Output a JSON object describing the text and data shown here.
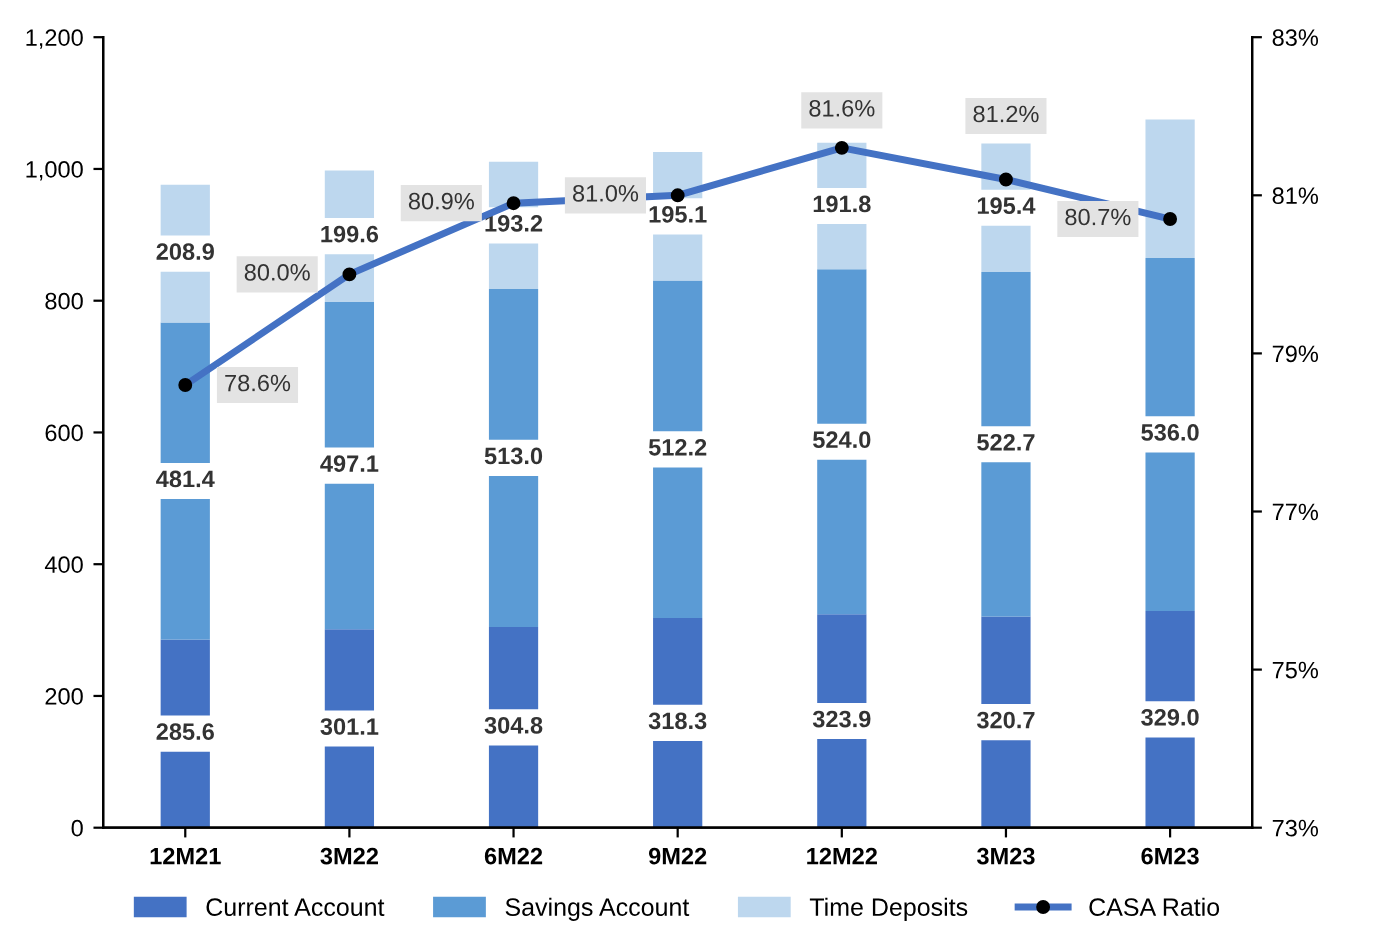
{
  "chart_data": {
    "type": "bar",
    "stacked": true,
    "legend": "bottom",
    "grid": false,
    "categories": [
      "12M21",
      "3M22",
      "6M22",
      "9M22",
      "12M22",
      "3M23",
      "6M23"
    ],
    "series": [
      {
        "name": "Current Account",
        "color": "#4472c4",
        "values": [
          285.6,
          301.1,
          304.8,
          318.3,
          323.9,
          320.7,
          329.0
        ],
        "value_labels": [
          "285.6",
          "301.1",
          "304.8",
          "318.3",
          "323.9",
          "320.7",
          "329.0"
        ]
      },
      {
        "name": "Savings Account",
        "color": "#5b9bd5",
        "values": [
          481.4,
          497.1,
          513.0,
          512.2,
          524.0,
          522.7,
          536.0
        ],
        "value_labels": [
          "481.4",
          "497.1",
          "513.0",
          "512.2",
          "524.0",
          "522.7",
          "536.0"
        ]
      },
      {
        "name": "Time Deposits",
        "color": "#bdd7ee",
        "values": [
          208.9,
          199.6,
          193.2,
          195.1,
          191.8,
          195.4,
          210
        ],
        "value_labels": [
          "208.9",
          "199.6",
          "193.2",
          "195.1",
          "191.8",
          "195.4",
          null
        ]
      },
      {
        "name": "CASA Ratio",
        "type": "line",
        "axis": "y2",
        "color": "#4472c4",
        "marker": "circle",
        "values": [
          78.6,
          80.0,
          80.9,
          81.0,
          81.6,
          81.2,
          80.7
        ],
        "value_labels": [
          "78.6%",
          "80.0%",
          "80.9%",
          "81.0%",
          "81.6%",
          "81.2%",
          "80.7%"
        ]
      }
    ],
    "ylim": [
      0,
      1200
    ],
    "yticks": [
      0,
      200,
      400,
      600,
      800,
      {
        "value": 1000,
        "label": "1,000"
      },
      {
        "value": 1200,
        "label": "1,200"
      }
    ],
    "y2lim": [
      73,
      83
    ],
    "y2ticks": [
      {
        "value": 73,
        "label": "73%"
      },
      {
        "value": 75,
        "label": "75%"
      },
      {
        "value": 77,
        "label": "77%"
      },
      {
        "value": 79,
        "label": "79%"
      },
      {
        "value": 81,
        "label": "81%"
      },
      {
        "value": 83,
        "label": "83%"
      }
    ]
  }
}
